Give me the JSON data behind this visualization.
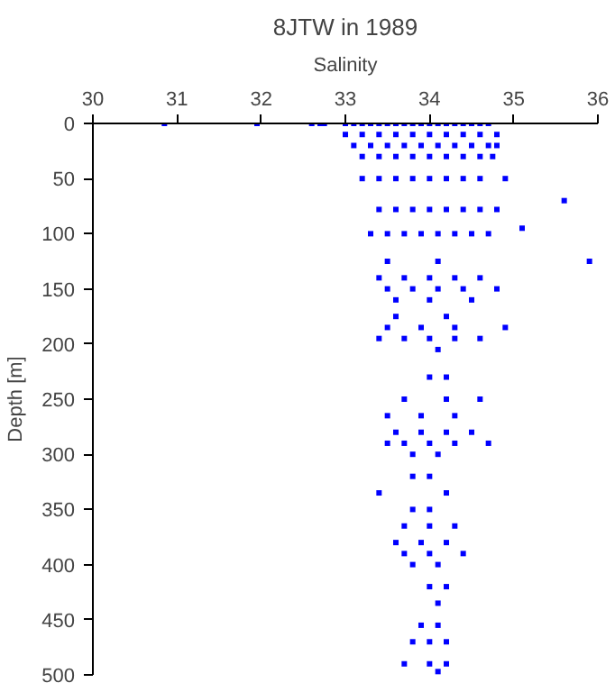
{
  "chart_data": {
    "type": "scatter",
    "title": "8JTW in 1989",
    "xlabel": "Salinity",
    "ylabel": "Depth [m]",
    "xlim": [
      30,
      36
    ],
    "xticks": [
      30,
      31,
      32,
      33,
      34,
      35,
      36
    ],
    "ylim": [
      500,
      0
    ],
    "yticks": [
      0,
      50,
      100,
      150,
      200,
      250,
      300,
      350,
      400,
      450,
      500
    ],
    "grid": false,
    "marker": "square",
    "series": [
      {
        "color": "#0000ff",
        "x": [
          30.85,
          31.95,
          32.6,
          32.7,
          32.75,
          33.0,
          33.1,
          33.2,
          33.3,
          33.4,
          33.5,
          33.6,
          33.7,
          33.8,
          33.9,
          34.0,
          34.1,
          34.2,
          34.3,
          34.4,
          34.5,
          34.6,
          34.7,
          33.0,
          33.2,
          33.4,
          33.6,
          33.8,
          34.0,
          34.2,
          34.4,
          34.6,
          34.8,
          33.1,
          33.3,
          33.5,
          33.7,
          33.9,
          34.1,
          34.3,
          34.5,
          34.7,
          34.8,
          33.2,
          33.4,
          33.6,
          33.8,
          34.0,
          34.2,
          34.4,
          34.6,
          34.75,
          33.2,
          33.4,
          33.6,
          33.8,
          34.0,
          34.2,
          34.4,
          34.6,
          34.9,
          35.6,
          33.4,
          33.6,
          33.8,
          34.0,
          34.2,
          34.4,
          34.6,
          34.8,
          35.1,
          33.3,
          33.5,
          33.7,
          33.9,
          34.1,
          34.3,
          34.5,
          34.7,
          35.9,
          33.5,
          34.1,
          33.4,
          33.7,
          34.0,
          34.3,
          34.6,
          33.5,
          33.8,
          34.1,
          34.4,
          34.8,
          33.6,
          34.0,
          34.5,
          33.6,
          34.2,
          33.5,
          33.9,
          34.3,
          34.9,
          33.4,
          33.7,
          34.0,
          34.3,
          34.6,
          34.1,
          34.0,
          34.2,
          33.7,
          34.2,
          34.6,
          33.5,
          33.9,
          34.3,
          33.6,
          33.9,
          34.2,
          34.5,
          33.5,
          33.7,
          34.0,
          34.3,
          34.7,
          33.8,
          34.1,
          33.8,
          34.0,
          33.4,
          34.2,
          33.8,
          34.0,
          33.7,
          34.0,
          34.3,
          33.6,
          33.9,
          34.2,
          33.7,
          34.0,
          34.4,
          33.8,
          34.1,
          34.0,
          34.2,
          34.1,
          33.9,
          34.1,
          33.8,
          34.0,
          34.2,
          33.7,
          34.0,
          34.2,
          34.1
        ],
        "values": [
          0,
          0,
          0,
          0,
          0,
          0,
          0,
          0,
          0,
          0,
          0,
          0,
          0,
          0,
          0,
          0,
          0,
          0,
          0,
          0,
          0,
          0,
          0,
          10,
          10,
          10,
          10,
          10,
          10,
          10,
          10,
          10,
          10,
          20,
          20,
          20,
          20,
          20,
          20,
          20,
          20,
          20,
          20,
          30,
          30,
          30,
          30,
          30,
          30,
          30,
          30,
          30,
          50,
          50,
          50,
          50,
          50,
          50,
          50,
          50,
          50,
          70,
          78,
          78,
          78,
          78,
          78,
          78,
          78,
          78,
          95,
          100,
          100,
          100,
          100,
          100,
          100,
          100,
          100,
          125,
          125,
          125,
          140,
          140,
          140,
          140,
          140,
          150,
          150,
          150,
          150,
          150,
          160,
          160,
          160,
          175,
          175,
          185,
          185,
          185,
          185,
          195,
          195,
          195,
          195,
          195,
          205,
          230,
          230,
          250,
          250,
          250,
          265,
          265,
          265,
          280,
          280,
          280,
          280,
          290,
          290,
          290,
          290,
          290,
          300,
          300,
          320,
          320,
          335,
          335,
          350,
          350,
          365,
          365,
          365,
          380,
          380,
          380,
          390,
          390,
          390,
          400,
          400,
          420,
          420,
          435,
          455,
          455,
          470,
          470,
          470,
          490,
          490,
          490,
          497
        ]
      }
    ]
  }
}
